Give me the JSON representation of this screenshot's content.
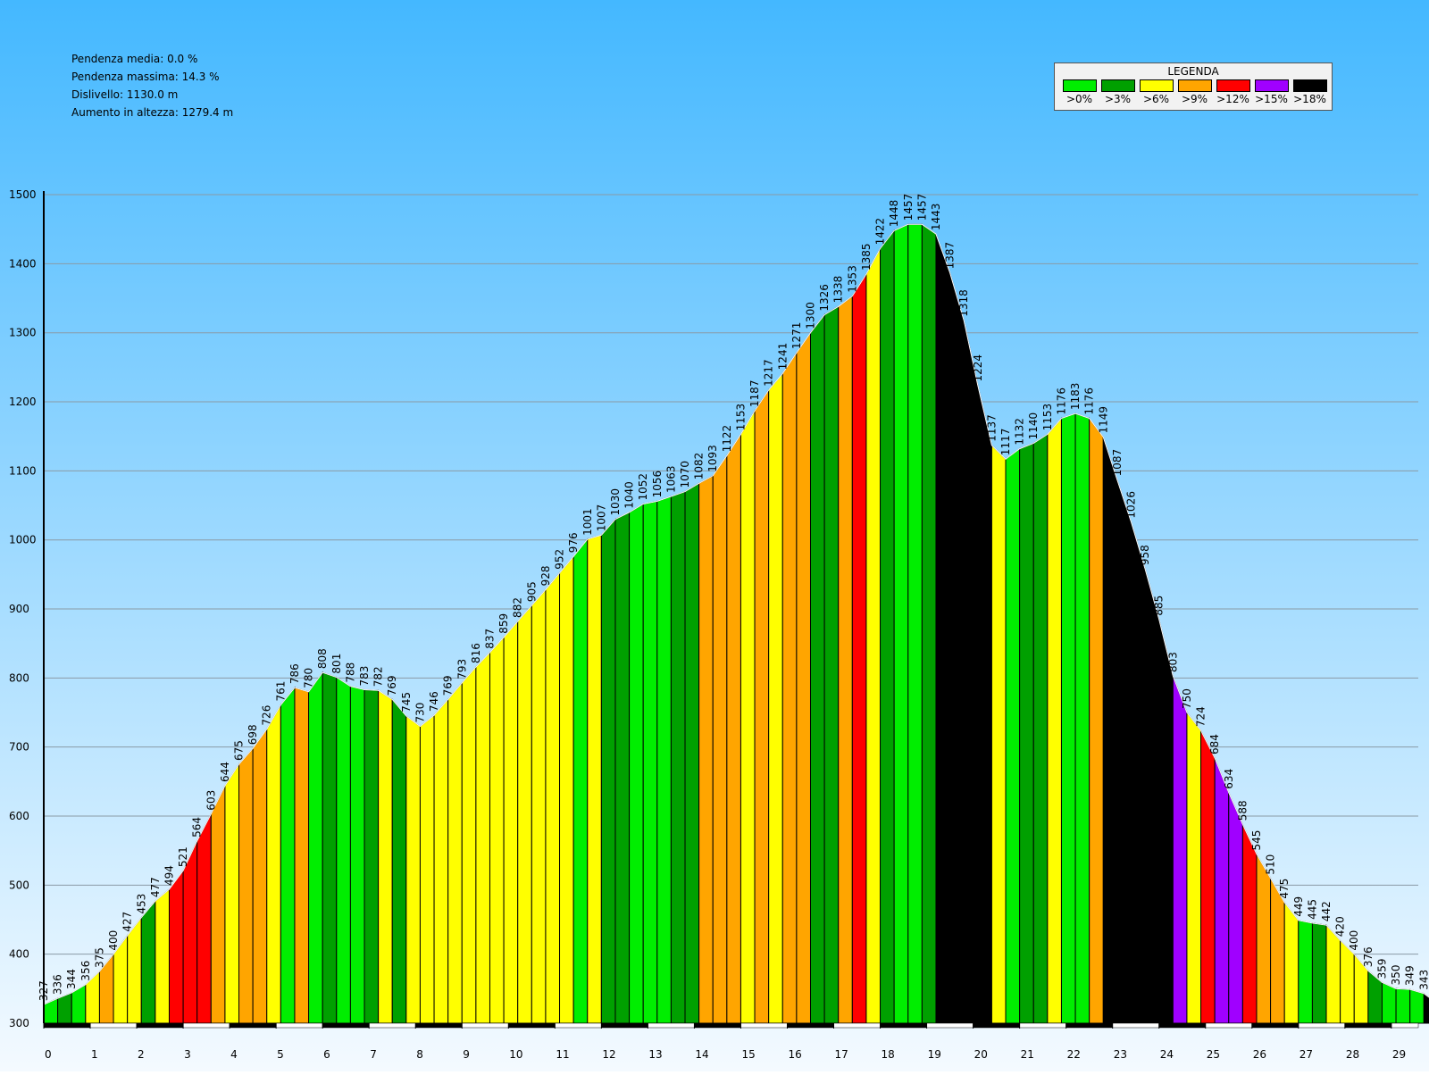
{
  "stats": {
    "avg_grade": "Pendenza media: 0.0 %",
    "max_grade": "Pendenza massima: 14.3 %",
    "drop": "Dislivello: 1130.0 m",
    "gain": "Aumento in altezza: 1279.4 m"
  },
  "legend": {
    "title": "LEGENDA",
    "items": [
      {
        "label": ">0%",
        "color": "#00ee00"
      },
      {
        "label": ">3%",
        "color": "#00a000"
      },
      {
        "label": ">6%",
        "color": "#ffff00"
      },
      {
        "label": ">9%",
        "color": "#ffa500"
      },
      {
        "label": ">12%",
        "color": "#ff0000"
      },
      {
        "label": ">15%",
        "color": "#a000ff"
      },
      {
        "label": ">18%",
        "color": "#000000"
      }
    ]
  },
  "colors": {
    "sky_top": "#44b8ff",
    "sky_bottom": "#f4faff",
    "gridline": "#8a9aa6",
    "outline": "#000000",
    "profile_line": "#ffffff"
  },
  "chart_data": {
    "type": "area",
    "xlabel": "",
    "ylabel": "",
    "xlim": [
      0,
      29.5
    ],
    "ylim": [
      300,
      1500
    ],
    "yticks": [
      300,
      400,
      500,
      600,
      700,
      800,
      900,
      1000,
      1100,
      1200,
      1300,
      1400,
      1500
    ],
    "xticks": [
      0,
      1,
      2,
      3,
      4,
      5,
      6,
      7,
      8,
      9,
      10,
      11,
      12,
      13,
      14,
      15,
      16,
      17,
      18,
      19,
      20,
      21,
      22,
      23,
      24,
      25,
      26,
      27,
      28,
      29
    ],
    "grid": true,
    "legend_position": "top-right",
    "step_km": 0.3,
    "elevation": [
      327,
      336,
      344,
      356,
      375,
      400,
      427,
      453,
      477,
      494,
      521,
      564,
      603,
      644,
      675,
      698,
      726,
      761,
      786,
      780,
      808,
      801,
      788,
      783,
      782,
      769,
      745,
      730,
      746,
      769,
      793,
      816,
      837,
      859,
      882,
      905,
      928,
      952,
      976,
      1001,
      1007,
      1030,
      1040,
      1052,
      1056,
      1063,
      1070,
      1082,
      1093,
      1122,
      1153,
      1187,
      1217,
      1241,
      1271,
      1300,
      1326,
      1338,
      1353,
      1385,
      1422,
      1448,
      1457,
      1457,
      1443,
      1387,
      1318,
      1224,
      1137,
      1117,
      1132,
      1140,
      1153,
      1176,
      1183,
      1176,
      1149,
      1087,
      1026,
      958,
      885,
      803,
      750,
      724,
      684,
      634,
      588,
      545,
      510,
      475,
      449,
      445,
      442,
      420,
      400,
      376,
      359,
      350,
      349,
      343,
      328
    ],
    "segment_class": [
      0,
      1,
      0,
      2,
      3,
      2,
      2,
      1,
      2,
      4,
      4,
      4,
      3,
      2,
      3,
      3,
      2,
      0,
      3,
      0,
      1,
      0,
      0,
      1,
      2,
      1,
      2,
      2,
      2,
      2,
      2,
      2,
      2,
      2,
      2,
      2,
      2,
      2,
      0,
      2,
      1,
      1,
      0,
      0,
      0,
      1,
      1,
      3,
      3,
      3,
      2,
      3,
      2,
      3,
      3,
      1,
      1,
      3,
      4,
      2,
      1,
      0,
      0,
      1,
      6,
      6,
      6,
      6,
      2,
      0,
      1,
      1,
      2,
      0,
      0,
      3,
      6,
      6,
      6,
      6,
      6,
      5,
      2,
      4,
      5,
      5,
      4,
      3,
      3,
      2,
      0,
      1,
      2,
      2,
      2,
      1,
      0,
      0,
      0,
      6
    ]
  }
}
